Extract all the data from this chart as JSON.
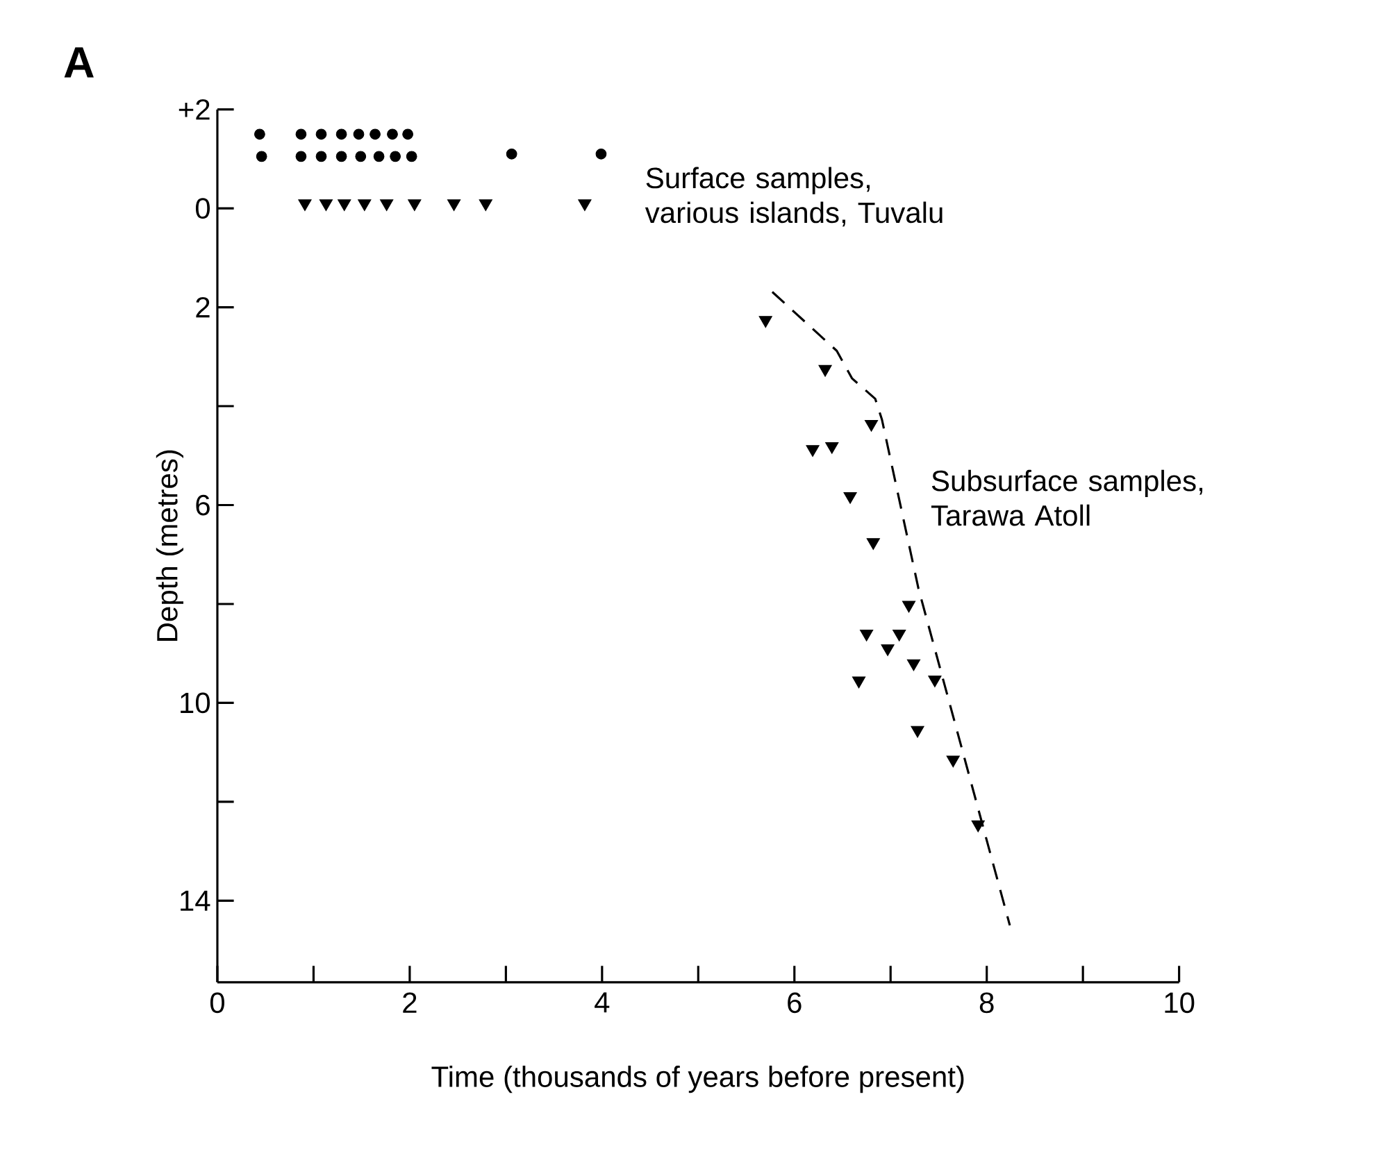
{
  "chart_data": {
    "type": "scatter",
    "title": "A",
    "xlabel": "Time  (thousands of years before present)",
    "ylabel": "Depth  (metres)",
    "xlim": [
      0,
      10
    ],
    "ylim": [
      15.65,
      -2
    ],
    "xticks": [
      0,
      {
        "value": 1,
        "label": null
      },
      2,
      {
        "value": 3,
        "label": null
      },
      4,
      {
        "value": 5,
        "label": null
      },
      6,
      {
        "value": 7,
        "label": null
      },
      8,
      {
        "value": 9,
        "label": null
      },
      10
    ],
    "yticks": [
      {
        "value": -2,
        "label": "+2"
      },
      0,
      2,
      {
        "value": 4,
        "label": null
      },
      6,
      {
        "value": 8,
        "label": null
      },
      10,
      {
        "value": 12,
        "label": null
      },
      14
    ],
    "series": [
      {
        "marker": "circle",
        "color": "#000000",
        "x": [
          0.44,
          0.87,
          1.08,
          1.29,
          1.47,
          1.64,
          1.82,
          1.98,
          0.46,
          0.87,
          1.08,
          1.29,
          1.49,
          1.68,
          1.85,
          2.02,
          3.06,
          3.99
        ],
        "values": [
          -1.5,
          -1.5,
          -1.5,
          -1.5,
          -1.5,
          -1.5,
          -1.5,
          -1.5,
          -1.05,
          -1.05,
          -1.05,
          -1.05,
          -1.05,
          -1.05,
          -1.05,
          -1.05,
          -1.1,
          -1.1
        ]
      },
      {
        "marker": "triangle",
        "color": "#000000",
        "x": [
          0.91,
          1.13,
          1.32,
          1.53,
          1.76,
          2.05,
          2.46,
          2.79,
          3.82
        ],
        "values": [
          -0.1,
          -0.1,
          -0.1,
          -0.1,
          -0.1,
          -0.1,
          -0.1,
          -0.1,
          -0.1
        ]
      },
      {
        "marker": "triangle",
        "color": "#000000",
        "x": [
          5.7,
          6.32,
          6.8,
          6.19,
          6.39,
          6.58,
          6.82,
          7.19,
          6.75,
          7.09,
          6.97,
          7.24,
          7.46,
          6.67,
          7.28,
          7.65,
          7.91
        ],
        "values": [
          2.26,
          3.25,
          4.36,
          4.87,
          4.81,
          5.82,
          6.75,
          8.02,
          8.6,
          8.6,
          8.9,
          9.2,
          9.53,
          9.55,
          10.55,
          11.15,
          12.46
        ]
      },
      {
        "type": "line",
        "marker": "none",
        "line_style": "dashed",
        "color": "#000000",
        "x": [
          5.77,
          6.44,
          6.6,
          6.84,
          6.91,
          7.29,
          8.24
        ],
        "values": [
          1.69,
          2.88,
          3.44,
          3.85,
          4.27,
          7.69,
          14.5
        ]
      }
    ],
    "annotations": [
      "Surface samples, various islands, Tuvalu",
      "Subsurface samples, Tarawa Atoll"
    ]
  }
}
